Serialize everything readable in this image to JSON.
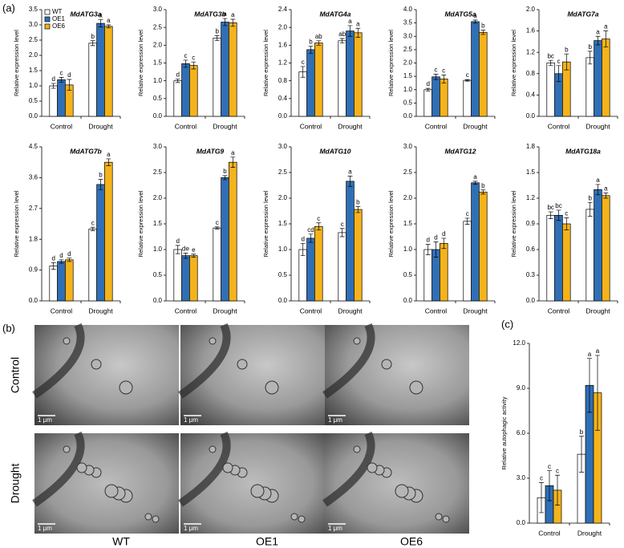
{
  "panels": {
    "a": "(a)",
    "b": "(b)",
    "c": "(c)"
  },
  "micrographs": {
    "rows": [
      "Control",
      "Drought"
    ],
    "columns": [
      "WT",
      "OE1",
      "OE6"
    ],
    "scale_bar": "1 μm"
  },
  "chart_data": [
    {
      "type": "bar",
      "title": "MdATG3a",
      "y_label": "Relative expression level",
      "categories": [
        "Control",
        "Drought"
      ],
      "ylim": [
        0,
        3.5
      ],
      "yticks": [
        {
          "value": 0,
          "label": "0.0"
        },
        0.5,
        {
          "value": 1,
          "label": "1.0"
        },
        1.5,
        {
          "value": 2,
          "label": "2.0"
        },
        2.5,
        {
          "value": 3,
          "label": "3.0"
        },
        3.5
      ],
      "legend": "top-left",
      "series": [
        {
          "name": "WT",
          "color": "#ffffff",
          "values": [
            1.0,
            2.4
          ],
          "errors": [
            0.08,
            0.08
          ],
          "letters": [
            "d",
            "b"
          ]
        },
        {
          "name": "OE1",
          "color": "#2f6fb6",
          "values": [
            1.2,
            3.05
          ],
          "errors": [
            0.08,
            0.12
          ],
          "letters": [
            "c",
            "a"
          ]
        },
        {
          "name": "OE6",
          "color": "#f5b31b",
          "values": [
            1.03,
            2.95
          ],
          "errors": [
            0.18,
            0.05
          ],
          "letters": [
            "d",
            "a"
          ]
        }
      ]
    },
    {
      "type": "bar",
      "title": "MdATG3b",
      "y_label": "Relative expression level",
      "categories": [
        "Control",
        "Drought"
      ],
      "ylim": [
        0,
        3.0
      ],
      "yticks": [
        {
          "value": 0,
          "label": "0.0"
        },
        0.5,
        {
          "value": 1,
          "label": "1.0"
        },
        1.5,
        {
          "value": 2,
          "label": "2.0"
        },
        2.5,
        {
          "value": 3,
          "label": "3.0"
        }
      ],
      "series": [
        {
          "color": "#ffffff",
          "values": [
            1.0,
            2.2
          ],
          "errors": [
            0.05,
            0.07
          ],
          "letters": [
            "d",
            "b"
          ]
        },
        {
          "color": "#2f6fb6",
          "values": [
            1.48,
            2.65
          ],
          "errors": [
            0.1,
            0.1
          ],
          "letters": [
            "c",
            "a"
          ]
        },
        {
          "color": "#f5b31b",
          "values": [
            1.43,
            2.63
          ],
          "errors": [
            0.1,
            0.1
          ],
          "letters": [
            "c",
            "a"
          ]
        }
      ]
    },
    {
      "type": "bar",
      "title": "MdATG4a",
      "y_label": "Relative expression level",
      "categories": [
        "Control",
        "Drought"
      ],
      "ylim": [
        0,
        2.4
      ],
      "yticks": [
        {
          "value": 0,
          "label": "0.0"
        },
        0.4,
        0.8,
        1.2,
        1.6,
        {
          "value": 2,
          "label": "2.0"
        },
        2.4
      ],
      "series": [
        {
          "color": "#ffffff",
          "values": [
            1.0,
            1.7
          ],
          "errors": [
            0.12,
            0.05
          ],
          "letters": [
            "c",
            "ab"
          ]
        },
        {
          "color": "#2f6fb6",
          "values": [
            1.5,
            1.92
          ],
          "errors": [
            0.08,
            0.12
          ],
          "letters": [
            "b",
            "a"
          ]
        },
        {
          "color": "#f5b31b",
          "values": [
            1.65,
            1.88
          ],
          "errors": [
            0.05,
            0.1
          ],
          "letters": [
            "ab",
            "a"
          ]
        }
      ]
    },
    {
      "type": "bar",
      "title": "MdATG5a",
      "y_label": "Relative expression level",
      "categories": [
        "Control",
        "Drought"
      ],
      "ylim": [
        0,
        4.0
      ],
      "yticks": [
        {
          "value": 0,
          "label": "0.0"
        },
        0.5,
        {
          "value": 1,
          "label": "1.0"
        },
        1.5,
        {
          "value": 2,
          "label": "2.0"
        },
        2.5,
        {
          "value": 3,
          "label": "3.0"
        },
        3.5,
        {
          "value": 4,
          "label": "4.0"
        }
      ],
      "series": [
        {
          "color": "#ffffff",
          "values": [
            1.0,
            1.35
          ],
          "errors": [
            0.05,
            0.03
          ],
          "letters": [
            "d",
            "c"
          ]
        },
        {
          "color": "#2f6fb6",
          "values": [
            1.48,
            3.55
          ],
          "errors": [
            0.1,
            0.06
          ],
          "letters": [
            "c",
            "a"
          ]
        },
        {
          "color": "#f5b31b",
          "values": [
            1.4,
            3.15
          ],
          "errors": [
            0.15,
            0.08
          ],
          "letters": [
            "c",
            "b"
          ]
        }
      ]
    },
    {
      "type": "bar",
      "title": "MdATG7a",
      "y_label": "Relative expression level",
      "categories": [
        "Control",
        "Drought"
      ],
      "ylim": [
        0,
        2.0
      ],
      "yticks": [
        {
          "value": 0,
          "label": "0.0"
        },
        0.4,
        0.8,
        1.2,
        1.6,
        {
          "value": 2,
          "label": "2.0"
        }
      ],
      "series": [
        {
          "color": "#ffffff",
          "values": [
            1.0,
            1.1
          ],
          "errors": [
            0.05,
            0.12
          ],
          "letters": [
            "bc",
            "b"
          ]
        },
        {
          "color": "#2f6fb6",
          "values": [
            0.8,
            1.42
          ],
          "errors": [
            0.15,
            0.08
          ],
          "letters": [
            "c",
            "a"
          ]
        },
        {
          "color": "#f5b31b",
          "values": [
            1.02,
            1.45
          ],
          "errors": [
            0.15,
            0.15
          ],
          "letters": [
            "b",
            "a"
          ]
        }
      ]
    },
    {
      "type": "bar",
      "title": "MdATG7b",
      "y_label": "Relative expression level",
      "categories": [
        "Control",
        "Drought"
      ],
      "ylim": [
        0,
        4.5
      ],
      "yticks": [
        {
          "value": 0,
          "label": "0.0"
        },
        0.9,
        1.8,
        2.7,
        3.6,
        4.5
      ],
      "series": [
        {
          "color": "#ffffff",
          "values": [
            1.02,
            2.1
          ],
          "errors": [
            0.1,
            0.05
          ],
          "letters": [
            "d",
            "c"
          ]
        },
        {
          "color": "#2f6fb6",
          "values": [
            1.15,
            3.4
          ],
          "errors": [
            0.05,
            0.15
          ],
          "letters": [
            "d",
            "b"
          ]
        },
        {
          "color": "#f5b31b",
          "values": [
            1.2,
            4.05
          ],
          "errors": [
            0.05,
            0.1
          ],
          "letters": [
            "d",
            "a"
          ]
        }
      ]
    },
    {
      "type": "bar",
      "title": "MdATG9",
      "y_label": "Relative expression level",
      "categories": [
        "Control",
        "Drought"
      ],
      "ylim": [
        0,
        3.0
      ],
      "yticks": [
        {
          "value": 0,
          "label": "0.0"
        },
        0.5,
        {
          "value": 1,
          "label": "1.0"
        },
        1.5,
        {
          "value": 2,
          "label": "2.0"
        },
        2.5,
        {
          "value": 3,
          "label": "3.0"
        }
      ],
      "series": [
        {
          "color": "#ffffff",
          "values": [
            1.0,
            1.42
          ],
          "errors": [
            0.08,
            0.02
          ],
          "letters": [
            "d",
            "c"
          ]
        },
        {
          "color": "#2f6fb6",
          "values": [
            0.88,
            2.4
          ],
          "errors": [
            0.05,
            0.04
          ],
          "letters": [
            "de",
            "b"
          ]
        },
        {
          "color": "#f5b31b",
          "values": [
            0.88,
            2.7
          ],
          "errors": [
            0.03,
            0.1
          ],
          "letters": [
            "e",
            "a"
          ]
        }
      ]
    },
    {
      "type": "bar",
      "title": "MdATG10",
      "y_label": "Relative expression level",
      "categories": [
        "Control",
        "Drought"
      ],
      "ylim": [
        0,
        3.0
      ],
      "yticks": [
        {
          "value": 0,
          "label": "0.0"
        },
        0.5,
        {
          "value": 1,
          "label": "1.0"
        },
        1.5,
        {
          "value": 2,
          "label": "2.0"
        },
        2.5,
        {
          "value": 3,
          "label": "3.0"
        }
      ],
      "series": [
        {
          "color": "#ffffff",
          "values": [
            1.0,
            1.33
          ],
          "errors": [
            0.12,
            0.08
          ],
          "letters": [
            "d",
            "c"
          ]
        },
        {
          "color": "#2f6fb6",
          "values": [
            1.22,
            2.33
          ],
          "errors": [
            0.08,
            0.1
          ],
          "letters": [
            "cd",
            "a"
          ]
        },
        {
          "color": "#f5b31b",
          "values": [
            1.45,
            1.78
          ],
          "errors": [
            0.07,
            0.06
          ],
          "letters": [
            "c",
            "b"
          ]
        }
      ]
    },
    {
      "type": "bar",
      "title": "MdATG12",
      "y_label": "Relative expression level",
      "categories": [
        "Control",
        "Drought"
      ],
      "ylim": [
        0,
        3.0
      ],
      "yticks": [
        {
          "value": 0,
          "label": "0.0"
        },
        0.5,
        {
          "value": 1,
          "label": "1.0"
        },
        1.5,
        {
          "value": 2,
          "label": "2.0"
        },
        2.5,
        {
          "value": 3,
          "label": "3.0"
        }
      ],
      "series": [
        {
          "color": "#ffffff",
          "values": [
            1.0,
            1.55
          ],
          "errors": [
            0.1,
            0.06
          ],
          "letters": [
            "d",
            "c"
          ]
        },
        {
          "color": "#2f6fb6",
          "values": [
            1.0,
            2.3
          ],
          "errors": [
            0.15,
            0.03
          ],
          "letters": [
            "d",
            "a"
          ]
        },
        {
          "color": "#f5b31b",
          "values": [
            1.12,
            2.12
          ],
          "errors": [
            0.1,
            0.04
          ],
          "letters": [
            "d",
            "b"
          ]
        }
      ]
    },
    {
      "type": "bar",
      "title": "MdATG18a",
      "y_label": "Relative expression level",
      "categories": [
        "Control",
        "Drought"
      ],
      "ylim": [
        0,
        1.8
      ],
      "yticks": [
        {
          "value": 0,
          "label": "0.0"
        },
        0.3,
        0.6,
        0.9,
        1.2,
        1.5,
        1.8
      ],
      "series": [
        {
          "color": "#ffffff",
          "values": [
            1.0,
            1.07
          ],
          "errors": [
            0.04,
            0.08
          ],
          "letters": [
            "bc",
            "b"
          ]
        },
        {
          "color": "#2f6fb6",
          "values": [
            1.0,
            1.3
          ],
          "errors": [
            0.06,
            0.06
          ],
          "letters": [
            "bc",
            "a"
          ]
        },
        {
          "color": "#f5b31b",
          "values": [
            0.9,
            1.23
          ],
          "errors": [
            0.07,
            0.03
          ],
          "letters": [
            "c",
            "a"
          ]
        }
      ]
    },
    {
      "type": "bar",
      "y_label": "Relative autophagic activity",
      "categories": [
        "Control",
        "Drought"
      ],
      "ylim": [
        0,
        12
      ],
      "yticks": [
        {
          "value": 0,
          "label": "0.0"
        },
        {
          "value": 3,
          "label": "3.0"
        },
        {
          "value": 6,
          "label": "6.0"
        },
        {
          "value": 9,
          "label": "9.0"
        },
        {
          "value": 12,
          "label": "12.0"
        }
      ],
      "series": [
        {
          "color": "#ffffff",
          "values": [
            1.7,
            4.6
          ],
          "errors": [
            1.0,
            1.2
          ],
          "letters": [
            "c",
            "b"
          ]
        },
        {
          "color": "#2f6fb6",
          "values": [
            2.5,
            9.2
          ],
          "errors": [
            1.0,
            1.8
          ],
          "letters": [
            "c",
            "a"
          ]
        },
        {
          "color": "#f5b31b",
          "values": [
            2.2,
            8.7
          ],
          "errors": [
            1.0,
            2.5
          ],
          "letters": [
            "c",
            "a"
          ]
        }
      ]
    }
  ]
}
